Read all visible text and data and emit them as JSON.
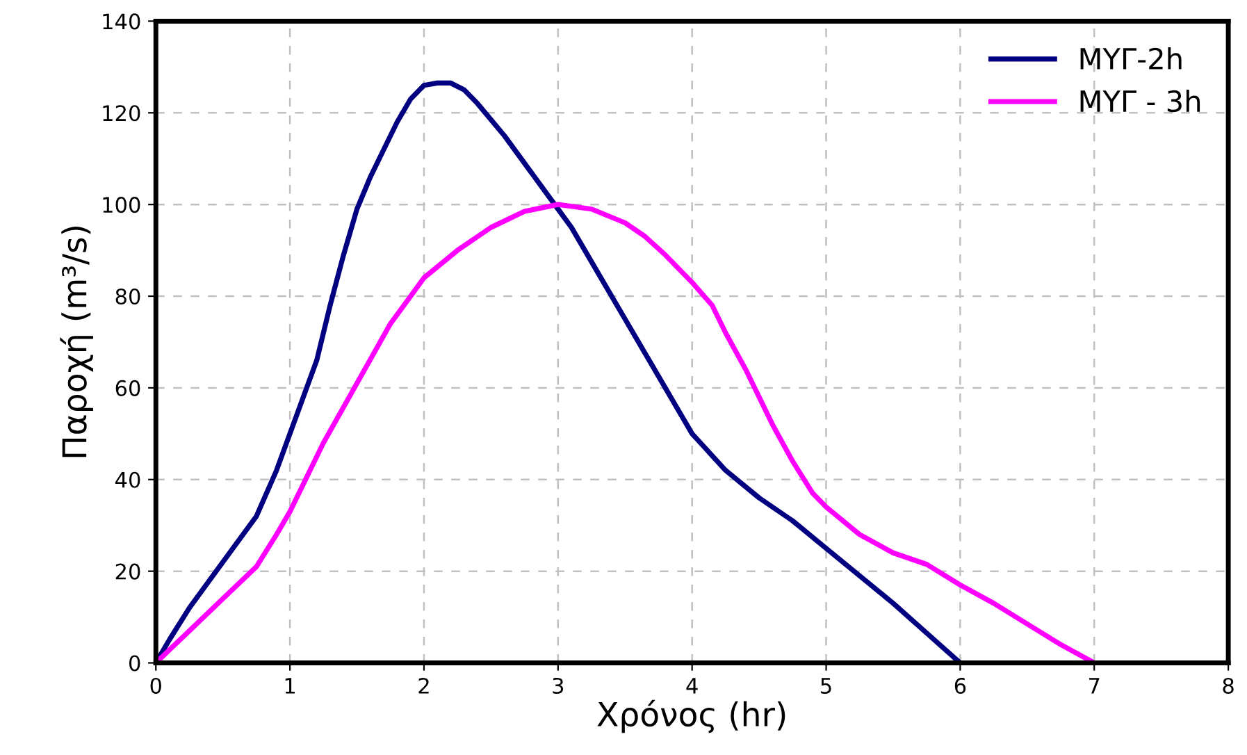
{
  "chart_data": {
    "type": "line",
    "xlabel": "Χρόνος (hr)",
    "ylabel": "Παροχή (m³/s)",
    "xlim": [
      0,
      8
    ],
    "ylim": [
      0,
      140
    ],
    "xticks": [
      0,
      1,
      2,
      3,
      4,
      5,
      6,
      7,
      8
    ],
    "yticks": [
      0,
      20,
      40,
      60,
      80,
      100,
      120,
      140
    ],
    "grid": true,
    "legend": "top right",
    "marker": "none",
    "line_style": "solid",
    "series": [
      {
        "name": "ΜΥΓ-2h",
        "color": "#000080",
        "x": [
          0,
          0.1,
          0.25,
          0.5,
          0.75,
          0.9,
          1.0,
          1.1,
          1.2,
          1.3,
          1.4,
          1.5,
          1.6,
          1.7,
          1.8,
          1.9,
          2.0,
          2.1,
          2.2,
          2.3,
          2.4,
          2.6,
          2.8,
          3.0,
          3.1,
          3.3,
          3.5,
          3.7,
          3.9,
          4.0,
          4.25,
          4.5,
          4.75,
          5.0,
          5.25,
          5.5,
          5.75,
          6.0
        ],
        "values": [
          0,
          5,
          12,
          22,
          32,
          42,
          50,
          58,
          66,
          78,
          89,
          99,
          106,
          112,
          118,
          123,
          126,
          126.5,
          126.5,
          125,
          122,
          115,
          107,
          99,
          95,
          85,
          75,
          65,
          55,
          50,
          42,
          36,
          31,
          25,
          19,
          13,
          6.5,
          0
        ]
      },
      {
        "name": "ΜΥΓ - 3h",
        "color": "#ff00ff",
        "x": [
          0,
          0.25,
          0.5,
          0.75,
          0.9,
          1.0,
          1.1,
          1.25,
          1.5,
          1.75,
          1.9,
          2.0,
          2.25,
          2.5,
          2.75,
          3.0,
          3.25,
          3.5,
          3.65,
          3.8,
          4.0,
          4.15,
          4.25,
          4.4,
          4.6,
          4.75,
          4.9,
          5.0,
          5.25,
          5.5,
          5.75,
          6.0,
          6.25,
          6.5,
          6.75,
          7.0
        ],
        "values": [
          0,
          7,
          14,
          21,
          28,
          33,
          39,
          48,
          61,
          74,
          80,
          84,
          90,
          95,
          98.5,
          100,
          99,
          96,
          93,
          89,
          83,
          78,
          72,
          64,
          52,
          44,
          37,
          34,
          28,
          24,
          21.5,
          17,
          13,
          8.5,
          4,
          0
        ]
      }
    ]
  }
}
